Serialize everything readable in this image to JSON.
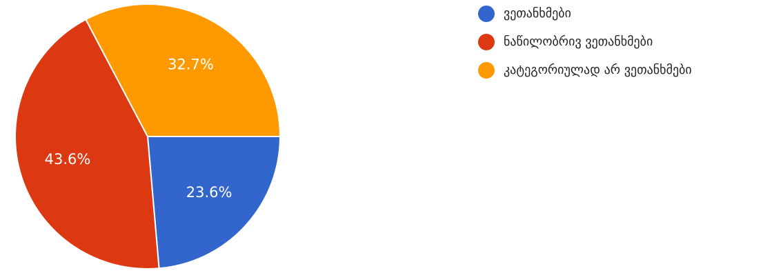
{
  "chart_data": {
    "type": "pie",
    "title": "",
    "categories": [
      "ვეთანხმები",
      "ნაწილობრივ ვეთანხმები",
      "კატეგორიულად არ ვეთანხმები"
    ],
    "values": [
      23.6,
      43.6,
      32.7
    ],
    "value_labels": [
      "23.6%",
      "43.6%",
      "32.7%"
    ],
    "colors": [
      "#3366cc",
      "#dc3912",
      "#ff9900"
    ],
    "start_angle_deg": 90,
    "direction": "clockwise",
    "legend": "top-right"
  }
}
